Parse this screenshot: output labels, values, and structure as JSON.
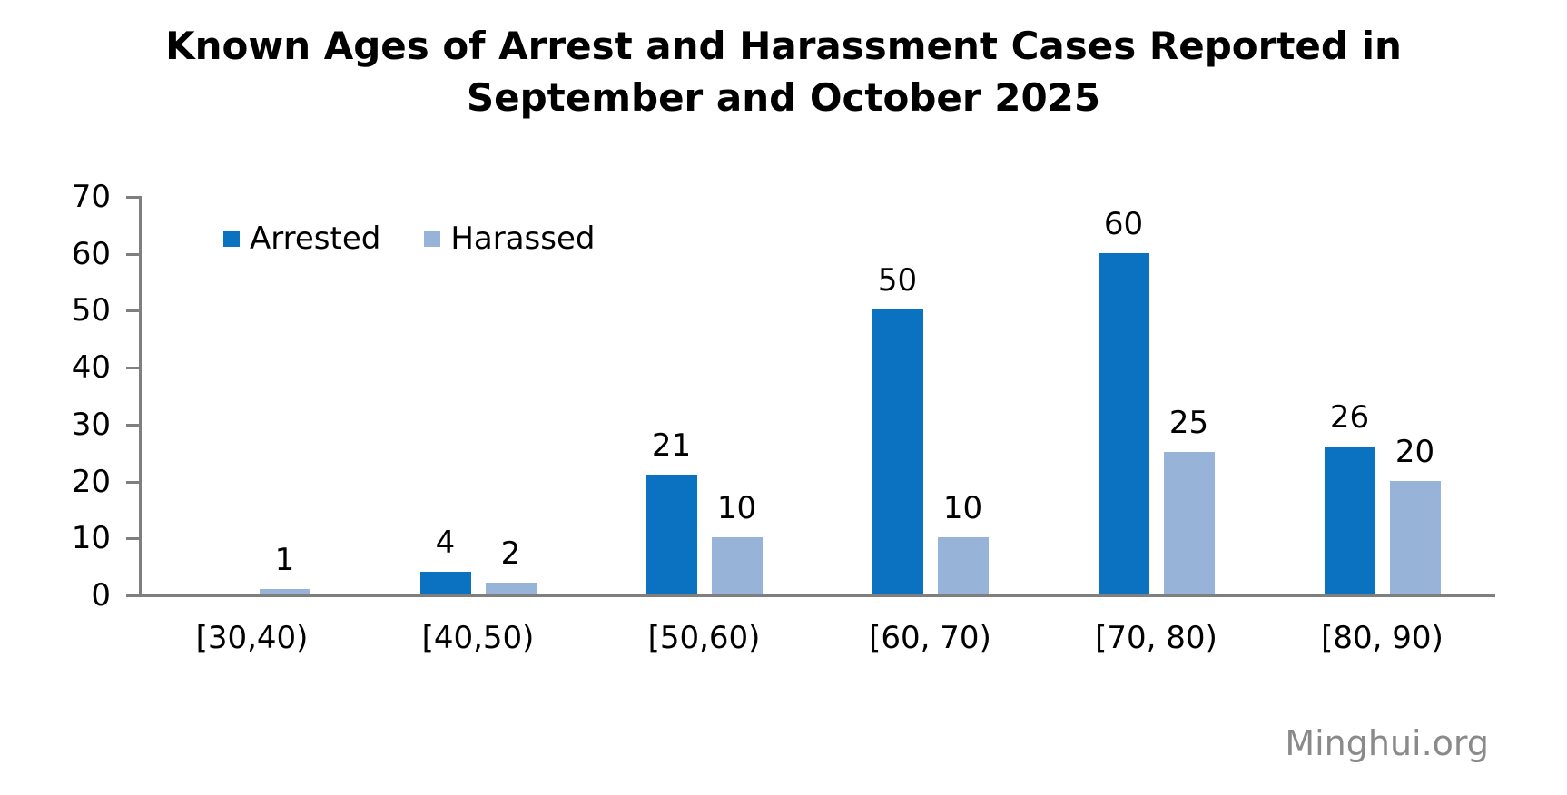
{
  "title": {
    "full": "Known Ages of Arrest and Harassment Cases Reported in September and October 2025",
    "lines": [
      "Known Ages of Arrest and Harassment Cases Reported in",
      "September and October 2025"
    ]
  },
  "watermark": "Minghui.org",
  "colors": {
    "arrested": "#0b72c1",
    "harassed": "#97b3d8",
    "axis": "#7f7f7f",
    "text": "#000000",
    "watermark": "#8a8a8a",
    "background": "#ffffff"
  },
  "chart_data": {
    "type": "bar",
    "title": "Known Ages of Arrest and Harassment Cases Reported in September and October 2025",
    "categories": [
      "[30,40)",
      "[40,50)",
      "[50,60)",
      "[60, 70)",
      "[70, 80)",
      "[80, 90)"
    ],
    "series": [
      {
        "name": "Arrested",
        "color": "#0b72c1",
        "values": [
          0,
          4,
          21,
          50,
          60,
          26
        ]
      },
      {
        "name": "Harassed",
        "color": "#97b3d8",
        "values": [
          1,
          2,
          10,
          10,
          25,
          20
        ]
      }
    ],
    "xlabel": "",
    "ylabel": "",
    "ylim": [
      0,
      70
    ],
    "yticks": [
      0,
      10,
      20,
      30,
      40,
      50,
      60,
      70
    ],
    "grid": false,
    "legend_position": "inside-top-left",
    "data_labels": "above-bars",
    "zero_values_hidden": true
  }
}
